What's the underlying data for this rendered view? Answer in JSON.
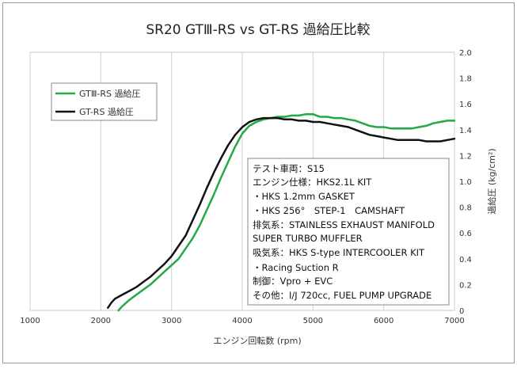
{
  "chart_data": {
    "type": "line",
    "title": "SR20 GTⅢ-RS vs GT-RS 過給圧比較",
    "xlabel": "エンジン回転数 (rpm)",
    "ylabel": "過給圧 (kg/cm²)",
    "xlim": [
      1000,
      7000
    ],
    "ylim": [
      0,
      2.0
    ],
    "x_ticks": [
      "1000",
      "2000",
      "3000",
      "4000",
      "5000",
      "6000",
      "7000"
    ],
    "y_ticks": [
      "0",
      "0.2",
      "0.4",
      "0.6",
      "0.8",
      "1.0",
      "1.2",
      "1.4",
      "1.6",
      "1.8",
      "2.0"
    ],
    "grid": "vertical",
    "legend_position": "top-left",
    "series": [
      {
        "name": "GTⅢ-RS 過給圧",
        "color": "#22aa44",
        "x": [
          2250,
          2300,
          2400,
          2500,
          2600,
          2700,
          2800,
          2900,
          3000,
          3100,
          3200,
          3300,
          3400,
          3500,
          3600,
          3700,
          3800,
          3900,
          4000,
          4100,
          4200,
          4300,
          4400,
          4500,
          4600,
          4700,
          4800,
          4900,
          5000,
          5050,
          5100,
          5200,
          5300,
          5400,
          5500,
          5600,
          5700,
          5800,
          5900,
          6000,
          6100,
          6200,
          6300,
          6400,
          6500,
          6600,
          6700,
          6800,
          6900,
          7000
        ],
        "values": [
          0.0,
          0.03,
          0.08,
          0.12,
          0.16,
          0.2,
          0.25,
          0.3,
          0.35,
          0.4,
          0.48,
          0.56,
          0.66,
          0.78,
          0.9,
          1.03,
          1.15,
          1.27,
          1.37,
          1.43,
          1.46,
          1.48,
          1.49,
          1.5,
          1.5,
          1.51,
          1.51,
          1.52,
          1.52,
          1.51,
          1.5,
          1.5,
          1.49,
          1.49,
          1.48,
          1.47,
          1.45,
          1.43,
          1.42,
          1.42,
          1.41,
          1.41,
          1.41,
          1.41,
          1.42,
          1.43,
          1.45,
          1.46,
          1.47,
          1.47
        ]
      },
      {
        "name": "GT-RS 過給圧",
        "color": "#111111",
        "x": [
          2100,
          2150,
          2200,
          2300,
          2400,
          2500,
          2600,
          2700,
          2800,
          2900,
          3000,
          3100,
          3200,
          3300,
          3400,
          3500,
          3600,
          3700,
          3800,
          3900,
          4000,
          4100,
          4200,
          4300,
          4400,
          4500,
          4600,
          4700,
          4800,
          4900,
          5000,
          5100,
          5200,
          5300,
          5400,
          5500,
          5600,
          5700,
          5800,
          5900,
          6000,
          6100,
          6200,
          6300,
          6400,
          6500,
          6600,
          6700,
          6800,
          6900,
          7000
        ],
        "values": [
          0.02,
          0.06,
          0.09,
          0.12,
          0.15,
          0.18,
          0.22,
          0.26,
          0.31,
          0.36,
          0.42,
          0.5,
          0.58,
          0.7,
          0.82,
          0.95,
          1.07,
          1.18,
          1.28,
          1.36,
          1.42,
          1.46,
          1.48,
          1.49,
          1.49,
          1.49,
          1.48,
          1.48,
          1.47,
          1.47,
          1.46,
          1.46,
          1.45,
          1.44,
          1.43,
          1.42,
          1.4,
          1.38,
          1.36,
          1.35,
          1.34,
          1.33,
          1.32,
          1.32,
          1.32,
          1.32,
          1.31,
          1.31,
          1.31,
          1.32,
          1.33
        ]
      }
    ],
    "annotation_lines": [
      "テスト車両：S15",
      "エンジン仕様：HKS2.1L KIT",
      "・HKS 1.2mm GASKET",
      "・HKS 256°　STEP-1　CAMSHAFT",
      "排気系：STAINLESS EXHAUST MANIFOLD",
      "SUPER TURBO MUFFLER",
      "吸気系：HKS S-type INTERCOOLER KIT",
      "・Racing Suction R",
      "制御：Vpro + EVC",
      "その他：I/J 720cc, FUEL PUMP UPGRADE"
    ]
  }
}
